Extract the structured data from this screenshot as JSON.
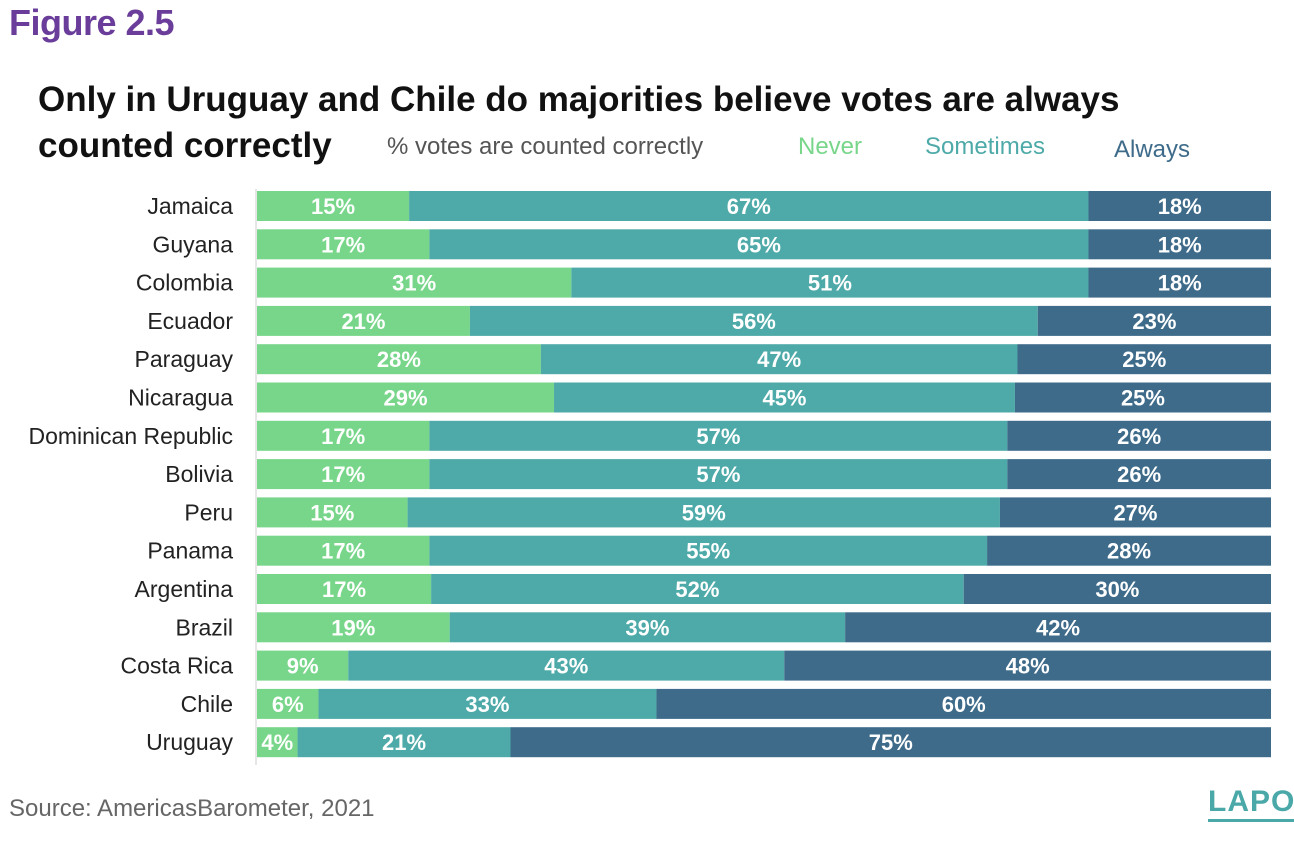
{
  "figure_label": "Figure 2.5",
  "title": "Only in Uruguay and Chile do majorities believe votes are always counted correctly",
  "legend": {
    "title": "% votes are counted correctly",
    "items": [
      {
        "label": "Never",
        "color": "#78d68a"
      },
      {
        "label": "Sometimes",
        "color": "#4eaaa8"
      },
      {
        "label": "Always",
        "color": "#3e6b8a"
      }
    ]
  },
  "source": "Source: AmericasBarometer, 2021",
  "logo": "LAPOP",
  "chart_data": {
    "type": "bar",
    "orientation": "horizontal",
    "stacked": true,
    "categories": [
      "Jamaica",
      "Guyana",
      "Colombia",
      "Ecuador",
      "Paraguay",
      "Nicaragua",
      "Dominican Republic",
      "Bolivia",
      "Peru",
      "Panama",
      "Argentina",
      "Brazil",
      "Costa Rica",
      "Chile",
      "Uruguay"
    ],
    "series": [
      {
        "name": "Never",
        "color": "#78d68a",
        "values": [
          15,
          17,
          31,
          21,
          28,
          29,
          17,
          17,
          15,
          17,
          17,
          19,
          9,
          6,
          4
        ]
      },
      {
        "name": "Sometimes",
        "color": "#4eaaa8",
        "values": [
          67,
          65,
          51,
          56,
          47,
          45,
          57,
          57,
          59,
          55,
          52,
          39,
          43,
          33,
          21
        ]
      },
      {
        "name": "Always",
        "color": "#3e6b8a",
        "values": [
          18,
          18,
          18,
          23,
          25,
          25,
          26,
          26,
          27,
          28,
          30,
          42,
          48,
          60,
          75
        ]
      }
    ],
    "value_suffix": "%",
    "xlim": [
      0,
      100
    ]
  }
}
